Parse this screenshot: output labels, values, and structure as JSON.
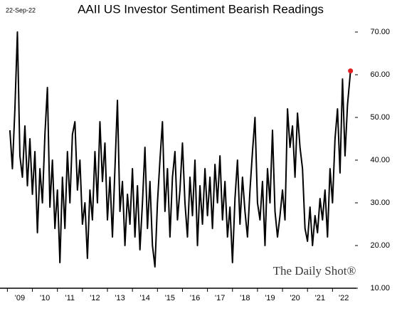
{
  "chart_data": {
    "type": "line",
    "title": "AAII US Investor Sentiment Bearish Readings",
    "date_label": "22-Sep-22",
    "watermark": "The Daily Shot®",
    "color": "#000000",
    "marker_color": "#e02020",
    "x": [
      2009.1,
      2009.2,
      2009.3,
      2009.4,
      2009.5,
      2009.6,
      2009.7,
      2009.8,
      2009.9,
      2010.0,
      2010.1,
      2010.2,
      2010.3,
      2010.4,
      2010.5,
      2010.6,
      2010.7,
      2010.8,
      2010.9,
      2011.0,
      2011.1,
      2011.2,
      2011.3,
      2011.4,
      2011.5,
      2011.6,
      2011.7,
      2011.8,
      2011.9,
      2012.0,
      2012.1,
      2012.2,
      2012.3,
      2012.4,
      2012.5,
      2012.6,
      2012.7,
      2012.8,
      2012.9,
      2013.0,
      2013.1,
      2013.2,
      2013.3,
      2013.4,
      2013.5,
      2013.6,
      2013.7,
      2013.8,
      2013.9,
      2014.0,
      2014.1,
      2014.2,
      2014.3,
      2014.4,
      2014.5,
      2014.6,
      2014.7,
      2014.8,
      2014.9,
      2015.0,
      2015.1,
      2015.2,
      2015.3,
      2015.4,
      2015.5,
      2015.6,
      2015.7,
      2015.8,
      2015.9,
      2016.0,
      2016.1,
      2016.2,
      2016.3,
      2016.4,
      2016.5,
      2016.6,
      2016.7,
      2016.8,
      2016.9,
      2017.0,
      2017.1,
      2017.2,
      2017.3,
      2017.4,
      2017.5,
      2017.6,
      2017.7,
      2017.8,
      2017.9,
      2018.0,
      2018.1,
      2018.2,
      2018.3,
      2018.4,
      2018.5,
      2018.6,
      2018.7,
      2018.8,
      2018.9,
      2019.0,
      2019.1,
      2019.2,
      2019.3,
      2019.4,
      2019.5,
      2019.6,
      2019.7,
      2019.8,
      2019.9,
      2020.0,
      2020.1,
      2020.2,
      2020.3,
      2020.4,
      2020.5,
      2020.6,
      2020.7,
      2020.8,
      2020.9,
      2021.0,
      2021.1,
      2021.2,
      2021.3,
      2021.4,
      2021.5,
      2021.6,
      2021.7,
      2021.8,
      2021.9,
      2022.0,
      2022.1,
      2022.2,
      2022.3,
      2022.4,
      2022.5,
      2022.6,
      2022.72
    ],
    "values": [
      47,
      38,
      52,
      70,
      41,
      36,
      48,
      34,
      45,
      32,
      42,
      23,
      38,
      30,
      46,
      57,
      29,
      40,
      24,
      33,
      16,
      36,
      24,
      42,
      30,
      46,
      49,
      33,
      40,
      25,
      30,
      17,
      33,
      26,
      42,
      30,
      49,
      35,
      44,
      26,
      36,
      22,
      38,
      54,
      28,
      35,
      20,
      32,
      25,
      38,
      22,
      34,
      19,
      30,
      43,
      24,
      35,
      20,
      15,
      30,
      40,
      49,
      28,
      38,
      22,
      36,
      42,
      26,
      33,
      44,
      30,
      22,
      36,
      27,
      40,
      20,
      34,
      25,
      38,
      27,
      36,
      24,
      39,
      30,
      41,
      26,
      35,
      22,
      29,
      16,
      31,
      40,
      25,
      36,
      28,
      22,
      33,
      42,
      50,
      30,
      26,
      35,
      20,
      38,
      30,
      47,
      28,
      22,
      27,
      33,
      26,
      52,
      43,
      48,
      36,
      51,
      43,
      38,
      24,
      21,
      29,
      20,
      27,
      23,
      31,
      26,
      33,
      22,
      38,
      30,
      45,
      52,
      37,
      59,
      41,
      53,
      60.9
    ],
    "xlim": [
      2009,
      2022.9
    ],
    "xticks": [
      {
        "value": 2009,
        "label": "'09"
      },
      {
        "value": 2010,
        "label": "'10"
      },
      {
        "value": 2011,
        "label": "'11"
      },
      {
        "value": 2012,
        "label": "'12"
      },
      {
        "value": 2013,
        "label": "'13"
      },
      {
        "value": 2014,
        "label": "'14"
      },
      {
        "value": 2015,
        "label": "'15"
      },
      {
        "value": 2016,
        "label": "'16"
      },
      {
        "value": 2017,
        "label": "'17"
      },
      {
        "value": 2018,
        "label": "'18"
      },
      {
        "value": 2019,
        "label": "'19"
      },
      {
        "value": 2020,
        "label": "'20"
      },
      {
        "value": 2021,
        "label": "'21"
      },
      {
        "value": 2022,
        "label": "'22"
      }
    ],
    "ylim": [
      10,
      70
    ],
    "yticks": [
      {
        "value": 10,
        "label": "10.00"
      },
      {
        "value": 20,
        "label": "20.00"
      },
      {
        "value": 30,
        "label": "30.00"
      },
      {
        "value": 40,
        "label": "40.00"
      },
      {
        "value": 50,
        "label": "50.00"
      },
      {
        "value": 60,
        "label": "60.00"
      },
      {
        "value": 70,
        "label": "70.00"
      }
    ],
    "grid": false
  }
}
